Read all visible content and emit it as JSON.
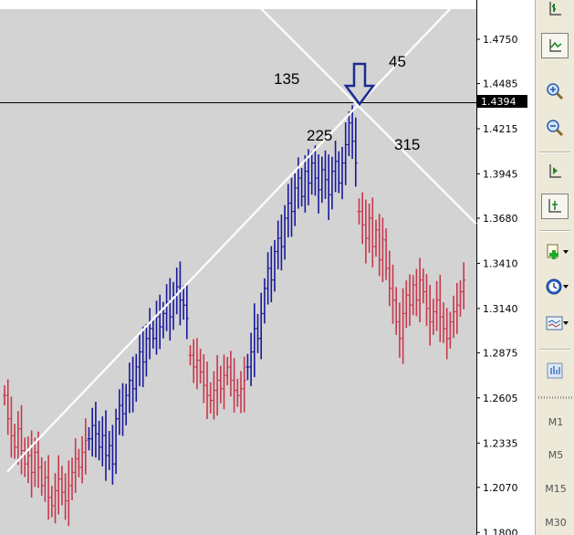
{
  "chart_data": {
    "type": "bar",
    "subtype": "OHLC price chart with Gann fan lines",
    "y_axis": {
      "ticks": [
        1.475,
        1.4485,
        1.4215,
        1.3945,
        1.368,
        1.341,
        1.314,
        1.2875,
        1.2605,
        1.2335,
        1.207,
        1.18
      ],
      "tick_labels": [
        "1.4750",
        "1.4485",
        "1.4215",
        "1.3945",
        "1.3680",
        "1.3410",
        "1.3140",
        "1.2875",
        "1.2605",
        "1.2335",
        "1.2070",
        "1.1800"
      ],
      "range": [
        1.1785,
        1.4985
      ],
      "position": "right"
    },
    "current_price": "1.4394",
    "current_price_value": 1.4394,
    "angle_labels": [
      "135",
      "45",
      "225",
      "315"
    ],
    "trend_anchor_price": 1.4355,
    "series": [
      {
        "color": "#c8374c",
        "segment": [
          0,
          24
        ],
        "close": [
          1.262,
          1.248,
          1.238,
          1.231,
          1.242,
          1.229,
          1.221,
          1.226,
          1.216,
          1.228,
          1.219,
          1.208,
          1.213,
          1.201,
          1.196,
          1.205,
          1.212,
          1.204,
          1.199,
          1.208,
          1.216,
          1.224,
          1.219,
          1.228,
          1.235
        ]
      },
      {
        "color": "#18189c",
        "segment": [
          25,
          54
        ],
        "close": [
          1.236,
          1.244,
          1.239,
          1.231,
          1.238,
          1.226,
          1.232,
          1.221,
          1.248,
          1.256,
          1.251,
          1.262,
          1.271,
          1.266,
          1.279,
          1.288,
          1.282,
          1.296,
          1.302,
          1.296,
          1.309,
          1.303,
          1.311,
          1.318,
          1.309,
          1.322,
          1.327,
          1.319,
          1.316,
          1.308
        ]
      },
      {
        "color": "#c8374c",
        "segment": [
          55,
          71
        ],
        "close": [
          1.286,
          1.279,
          1.283,
          1.276,
          1.268,
          1.262,
          1.259,
          1.265,
          1.271,
          1.266,
          1.274,
          1.279,
          1.271,
          1.265,
          1.262,
          1.266,
          1.271
        ]
      },
      {
        "color": "#18189c",
        "segment": [
          72,
          104
        ],
        "close": [
          1.279,
          1.288,
          1.302,
          1.296,
          1.311,
          1.326,
          1.338,
          1.331,
          1.348,
          1.356,
          1.351,
          1.368,
          1.377,
          1.372,
          1.386,
          1.392,
          1.381,
          1.396,
          1.389,
          1.401,
          1.392,
          1.385,
          1.397,
          1.391,
          1.382,
          1.396,
          1.402,
          1.389,
          1.401,
          1.412,
          1.425,
          1.414,
          1.401
        ]
      },
      {
        "color": "#c8374c",
        "segment": [
          105,
          136
        ],
        "close": [
          1.372,
          1.364,
          1.356,
          1.368,
          1.351,
          1.361,
          1.343,
          1.355,
          1.338,
          1.326,
          1.319,
          1.306,
          1.296,
          1.311,
          1.322,
          1.316,
          1.328,
          1.319,
          1.331,
          1.324,
          1.314,
          1.306,
          1.312,
          1.319,
          1.309,
          1.302,
          1.296,
          1.306,
          1.312,
          1.316,
          1.324,
          1.331
        ]
      }
    ]
  },
  "toolbar": {
    "icons": [
      "bar-chart-icon",
      "line-chart-icon",
      "zoom-in-icon",
      "zoom-out-icon",
      "chart-shift-icon",
      "autoscroll-icon",
      "indicators-icon",
      "periodicity-icon",
      "templates-icon",
      "expert-advisor-icon"
    ],
    "timeframes": [
      "M1",
      "M5",
      "M15",
      "M30"
    ]
  },
  "colors": {
    "chart_bg": "#d3d3d3",
    "bull": "#18189c",
    "bear": "#c8374c",
    "fan_lines": "#ffffff",
    "arrow": "#1b2d8f",
    "toolbar_bg": "#ece9d8"
  }
}
